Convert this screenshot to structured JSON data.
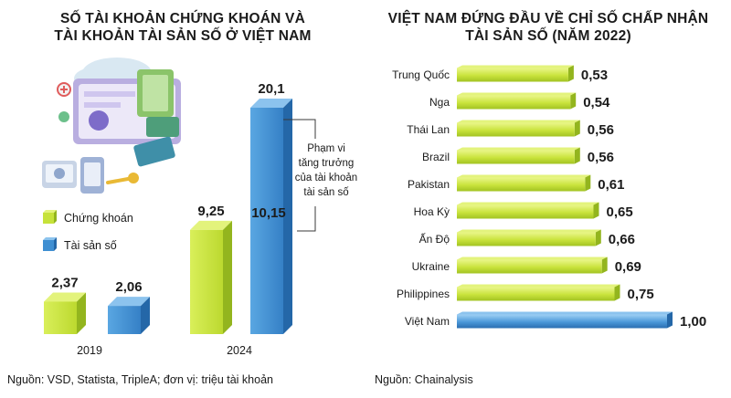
{
  "left": {
    "title_lines": [
      "SỐ TÀI KHOẢN CHỨNG KHOÁN VÀ",
      "TÀI KHOẢN TÀI SẢN SỐ Ở VIỆT NAM"
    ],
    "source": "Nguồn: VSD, Statista, TripleA; đơn vị: triệu tài khoản",
    "annotation_lines": [
      "Phạm vi",
      "tăng trưởng",
      "của tài khoản",
      "tài sản số"
    ],
    "illustration_icon": "digital-wallet-illustration-icon"
  },
  "right": {
    "title_lines": [
      "VIỆT NAM ĐỨNG ĐẦU VỀ CHỈ SỐ CHẤP NHẬN",
      "TÀI SẢN SỐ (NĂM 2022)"
    ],
    "source": "Nguồn: Chainalysis"
  },
  "colors": {
    "green_front": "#c6e23a",
    "green_side": "#93b51e",
    "green_top": "#e3f37c",
    "blue_front": "#3f8fd2",
    "blue_side": "#2467a8",
    "blue_top": "#8cc3ee"
  },
  "chart_data": [
    {
      "type": "bar",
      "categories": [
        "2019",
        "2024"
      ],
      "series": [
        {
          "name": "Chứng khoán",
          "values": [
            2.37,
            9.25
          ],
          "labels": [
            "2,37",
            "9,25"
          ]
        },
        {
          "name": "Tài sản số",
          "values": [
            2.06,
            20.1
          ],
          "labels": [
            "2,06",
            "20,1"
          ]
        }
      ],
      "extra_labels": [
        {
          "category": "2024",
          "series": "Tài sản số",
          "label": "10,15"
        }
      ],
      "title": "SỐ TÀI KHOẢN CHỨNG KHOÁN VÀ TÀI KHOẢN TÀI SẢN SỐ Ở VIỆT NAM",
      "legend": "left",
      "grid": false
    },
    {
      "type": "bar",
      "orientation": "horizontal",
      "categories": [
        "Trung Quốc",
        "Nga",
        "Thái Lan",
        "Brazil",
        "Pakistan",
        "Hoa Kỳ",
        "Ấn Độ",
        "Ukraine",
        "Philippines",
        "Việt Nam"
      ],
      "values": [
        0.53,
        0.54,
        0.56,
        0.56,
        0.61,
        0.65,
        0.66,
        0.69,
        0.75,
        1.0
      ],
      "labels": [
        "0,53",
        "0,54",
        "0,56",
        "0,56",
        "0,61",
        "0,65",
        "0,66",
        "0,69",
        "0,75",
        "1,00"
      ],
      "title": "VIỆT NAM ĐỨNG ĐẦU VỀ CHỈ SỐ CHẤP NHẬN TÀI SẢN SỐ (NĂM 2022)",
      "grid": false
    }
  ]
}
